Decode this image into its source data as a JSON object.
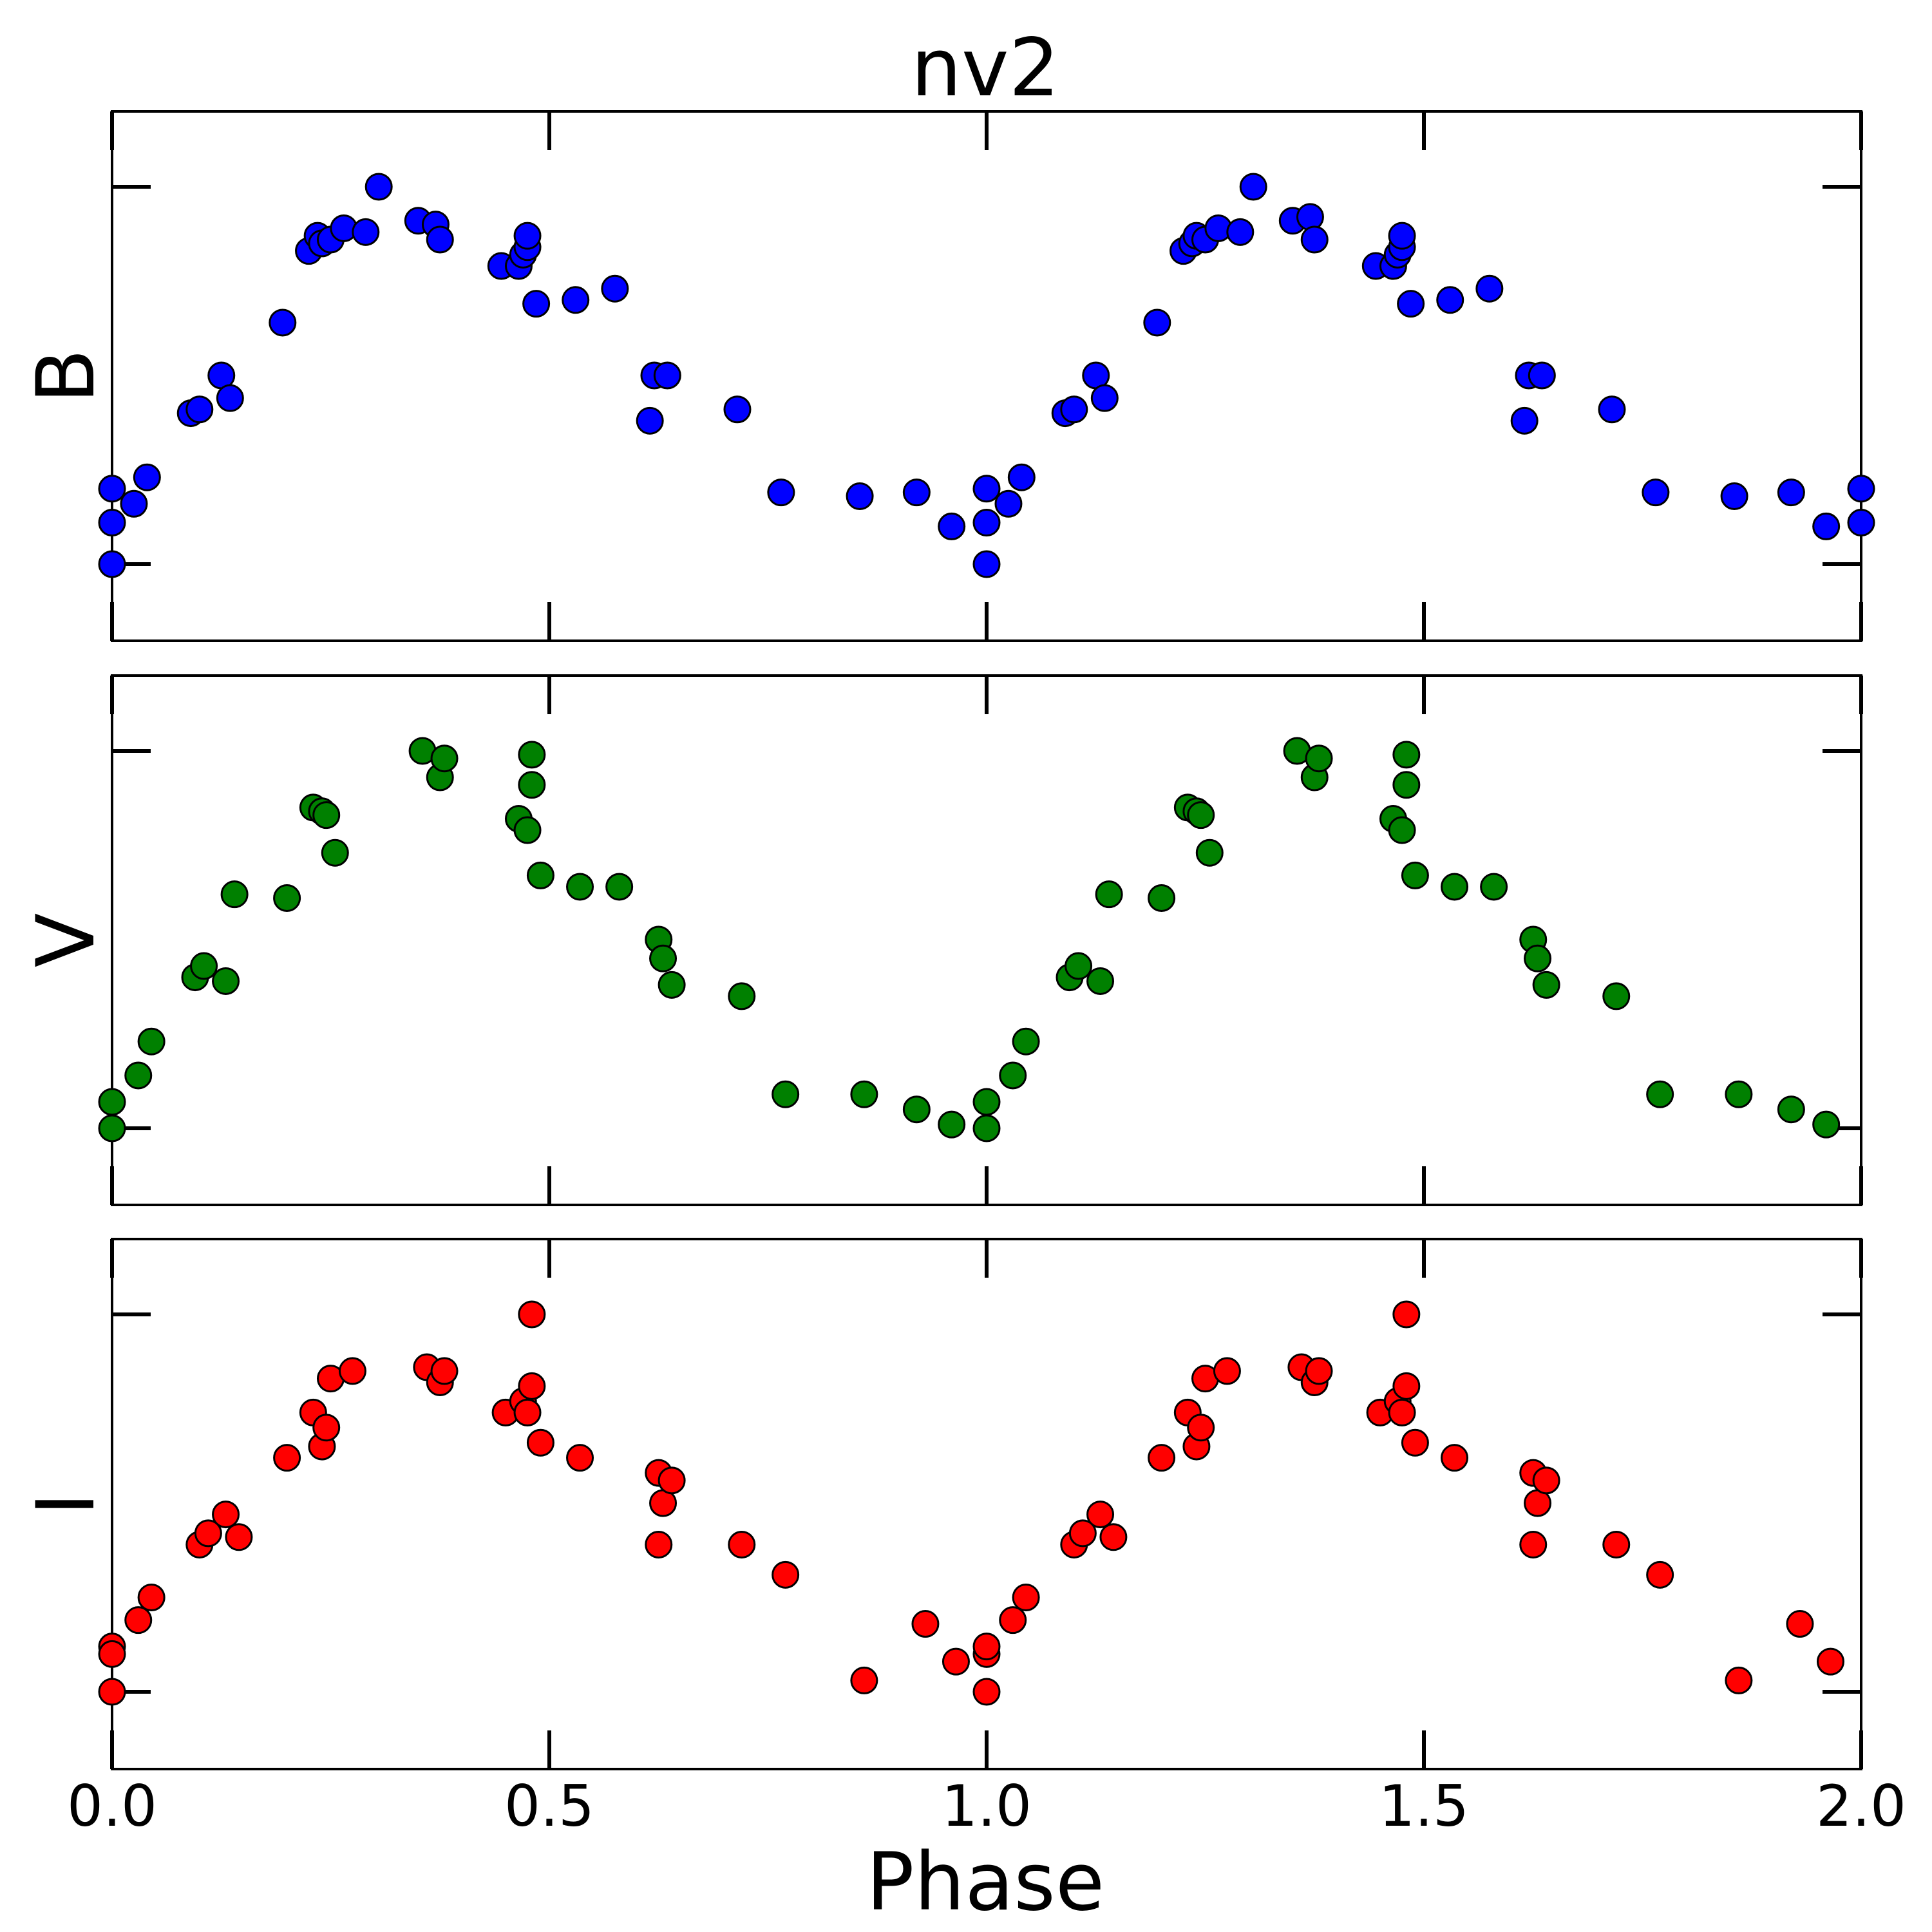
{
  "chart_data": {
    "type": "scatter",
    "title": "nv2",
    "xlabel": "Phase",
    "xlim": [
      0.0,
      2.0
    ],
    "xticks": [
      "0.0",
      "0.5",
      "1.0",
      "1.5",
      "2.0"
    ],
    "panels": [
      {
        "name": "B",
        "ylabel": "B",
        "color": "#0000ff",
        "ylim": [
          0.0,
          1.0
        ],
        "x": [
          0.0,
          0.0,
          0.0,
          0.025,
          0.04,
          0.09,
          0.1,
          0.125,
          0.135,
          0.195,
          0.225,
          0.235,
          0.24,
          0.25,
          0.265,
          0.29,
          0.305,
          0.35,
          0.37,
          0.375,
          0.445,
          0.465,
          0.47,
          0.475,
          0.475,
          0.485,
          0.53,
          0.575,
          0.615,
          0.62,
          0.635,
          0.715,
          0.765,
          0.855,
          0.92,
          0.96,
          1.0,
          1.0,
          1.0,
          1.025,
          1.04,
          1.09,
          1.1,
          1.125,
          1.135,
          1.195,
          1.225,
          1.235,
          1.24,
          1.25,
          1.265,
          1.29,
          1.305,
          1.35,
          1.37,
          1.375,
          1.445,
          1.465,
          1.47,
          1.475,
          1.475,
          1.485,
          1.53,
          1.575,
          1.615,
          1.62,
          1.635,
          1.715,
          1.765,
          1.855,
          1.92,
          1.96,
          2.0,
          2.0
        ],
        "y": [
          0.2,
          0.11,
          0.0,
          0.16,
          0.23,
          0.4,
          0.41,
          0.5,
          0.44,
          0.64,
          0.83,
          0.87,
          0.85,
          0.86,
          0.89,
          0.88,
          1.0,
          0.91,
          0.9,
          0.86,
          0.79,
          0.79,
          0.82,
          0.84,
          0.87,
          0.69,
          0.7,
          0.73,
          0.38,
          0.5,
          0.5,
          0.41,
          0.19,
          0.18,
          0.19,
          0.1,
          0.0,
          0.11,
          0.2,
          0.16,
          0.23,
          0.4,
          0.41,
          0.5,
          0.44,
          0.64,
          0.83,
          0.85,
          0.87,
          0.86,
          0.89,
          0.88,
          1.0,
          0.91,
          0.92,
          0.86,
          0.79,
          0.79,
          0.82,
          0.84,
          0.87,
          0.69,
          0.7,
          0.73,
          0.38,
          0.5,
          0.5,
          0.41,
          0.19,
          0.18,
          0.19,
          0.1,
          0.2,
          0.11
        ]
      },
      {
        "name": "V",
        "ylabel": "V",
        "color": "#008000",
        "ylim": [
          0.0,
          1.0
        ],
        "x": [
          0.0,
          0.0,
          0.03,
          0.045,
          0.095,
          0.105,
          0.13,
          0.14,
          0.2,
          0.23,
          0.24,
          0.245,
          0.255,
          0.355,
          0.375,
          0.38,
          0.465,
          0.475,
          0.48,
          0.48,
          0.49,
          0.535,
          0.58,
          0.625,
          0.63,
          0.64,
          0.72,
          0.77,
          0.86,
          0.92,
          0.96,
          1.0,
          1.0,
          1.03,
          1.045,
          1.095,
          1.105,
          1.13,
          1.14,
          1.2,
          1.23,
          1.24,
          1.245,
          1.255,
          1.355,
          1.375,
          1.38,
          1.465,
          1.475,
          1.48,
          1.48,
          1.49,
          1.535,
          1.58,
          1.625,
          1.63,
          1.64,
          1.72,
          1.77,
          1.86,
          1.92,
          1.96
        ],
        "y": [
          0.07,
          0.0,
          0.14,
          0.23,
          0.4,
          0.43,
          0.39,
          0.62,
          0.61,
          0.85,
          0.84,
          0.83,
          0.73,
          1.0,
          0.93,
          0.98,
          0.82,
          0.79,
          0.91,
          0.99,
          0.67,
          0.64,
          0.64,
          0.5,
          0.45,
          0.38,
          0.35,
          0.09,
          0.09,
          0.05,
          0.01,
          0.0,
          0.07,
          0.14,
          0.23,
          0.4,
          0.43,
          0.39,
          0.62,
          0.61,
          0.85,
          0.84,
          0.83,
          0.73,
          1.0,
          0.93,
          0.98,
          0.82,
          0.79,
          0.91,
          0.99,
          0.67,
          0.64,
          0.64,
          0.5,
          0.45,
          0.38,
          0.35,
          0.09,
          0.09,
          0.05,
          0.01
        ]
      },
      {
        "name": "I",
        "ylabel": "I",
        "color": "#ff0000",
        "ylim": [
          0.0,
          1.0
        ],
        "x": [
          0.0,
          0.0,
          0.0,
          0.03,
          0.045,
          0.1,
          0.11,
          0.13,
          0.145,
          0.2,
          0.23,
          0.24,
          0.245,
          0.25,
          0.275,
          0.36,
          0.375,
          0.38,
          0.45,
          0.47,
          0.475,
          0.48,
          0.48,
          0.49,
          0.535,
          0.625,
          0.625,
          0.63,
          0.64,
          0.72,
          0.77,
          0.86,
          0.93,
          0.965,
          1.0,
          1.0,
          1.0,
          1.03,
          1.045,
          1.1,
          1.11,
          1.13,
          1.145,
          1.2,
          1.23,
          1.24,
          1.245,
          1.25,
          1.275,
          1.36,
          1.375,
          1.38,
          1.45,
          1.47,
          1.475,
          1.48,
          1.48,
          1.49,
          1.535,
          1.625,
          1.625,
          1.63,
          1.64,
          1.72,
          1.77,
          1.86,
          1.93,
          1.965
        ],
        "y": [
          0.12,
          0.1,
          0.0,
          0.19,
          0.25,
          0.39,
          0.42,
          0.47,
          0.41,
          0.62,
          0.74,
          0.65,
          0.7,
          0.83,
          0.85,
          0.86,
          0.82,
          0.85,
          0.74,
          0.77,
          0.74,
          0.81,
          1.0,
          0.66,
          0.62,
          0.58,
          0.39,
          0.5,
          0.56,
          0.39,
          0.31,
          0.03,
          0.18,
          0.08,
          0.0,
          0.1,
          0.12,
          0.19,
          0.25,
          0.39,
          0.42,
          0.47,
          0.41,
          0.62,
          0.74,
          0.65,
          0.7,
          0.83,
          0.85,
          0.86,
          0.82,
          0.85,
          0.74,
          0.77,
          0.74,
          0.81,
          1.0,
          0.66,
          0.62,
          0.58,
          0.39,
          0.5,
          0.56,
          0.39,
          0.31,
          0.03,
          0.18,
          0.08
        ]
      }
    ]
  }
}
